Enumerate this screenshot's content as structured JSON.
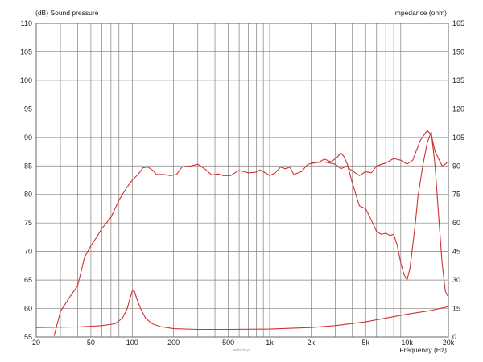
{
  "chart_data": {
    "type": "line",
    "left_axis_title": "(dB)  Sound pressure",
    "right_axis_title": "Impedance  (ohm)",
    "x_axis_title": "Frequency  (Hz)",
    "watermark": "audio.net.pl",
    "x_scale": "log",
    "xlim": [
      20,
      20000
    ],
    "ylim_left": [
      55,
      110
    ],
    "ylim_right": [
      0,
      165
    ],
    "grid": true,
    "x_ticks": [
      {
        "value": 20,
        "label": "20"
      },
      {
        "value": 50,
        "label": "50"
      },
      {
        "value": 100,
        "label": "100"
      },
      {
        "value": 200,
        "label": "200"
      },
      {
        "value": 500,
        "label": "500"
      },
      {
        "value": 1000,
        "label": "1k"
      },
      {
        "value": 2000,
        "label": "2k"
      },
      {
        "value": 5000,
        "label": "5k"
      },
      {
        "value": 10000,
        "label": "10k"
      },
      {
        "value": 20000,
        "label": "20k"
      }
    ],
    "y_left_ticks": [
      55,
      60,
      65,
      70,
      75,
      80,
      85,
      90,
      95,
      100,
      105,
      110
    ],
    "y_right_ticks": [
      0,
      15,
      30,
      45,
      60,
      75,
      90,
      105,
      120,
      135,
      150,
      165
    ],
    "colors": {
      "curve": "#cc3333",
      "grid": "#808080",
      "frame": "#666666"
    },
    "series": [
      {
        "axis": "left",
        "points": [
          [
            27,
            55.2
          ],
          [
            30,
            59.5
          ],
          [
            35,
            62
          ],
          [
            40,
            64
          ],
          [
            45,
            69
          ],
          [
            50,
            71
          ],
          [
            55,
            72.5
          ],
          [
            60,
            74
          ],
          [
            70,
            76
          ],
          [
            80,
            79
          ],
          [
            90,
            81
          ],
          [
            100,
            82.5
          ],
          [
            110,
            83.5
          ],
          [
            120,
            84.7
          ],
          [
            130,
            84.8
          ],
          [
            140,
            84.3
          ],
          [
            150,
            83.5
          ],
          [
            170,
            83.5
          ],
          [
            190,
            83.3
          ],
          [
            210,
            83.5
          ],
          [
            230,
            84.8
          ],
          [
            270,
            85
          ],
          [
            300,
            85.3
          ],
          [
            340,
            84.4
          ],
          [
            380,
            83.4
          ],
          [
            420,
            83.6
          ],
          [
            460,
            83.3
          ],
          [
            520,
            83.3
          ],
          [
            560,
            83.8
          ],
          [
            600,
            84.2
          ],
          [
            650,
            84.0
          ],
          [
            700,
            83.8
          ],
          [
            800,
            83.9
          ],
          [
            850,
            84.3
          ],
          [
            900,
            84.0
          ],
          [
            1000,
            83.3
          ],
          [
            1100,
            83.8
          ],
          [
            1200,
            84.8
          ],
          [
            1300,
            84.5
          ],
          [
            1400,
            84.8
          ],
          [
            1500,
            83.5
          ],
          [
            1700,
            84.0
          ],
          [
            1900,
            85.3
          ],
          [
            2100,
            85.5
          ],
          [
            2300,
            85.7
          ],
          [
            2500,
            86.2
          ],
          [
            2800,
            85.7
          ],
          [
            3100,
            86.5
          ],
          [
            3300,
            87.3
          ],
          [
            3500,
            86.5
          ],
          [
            3800,
            84.5
          ],
          [
            4200,
            83.8
          ],
          [
            4500,
            83.3
          ],
          [
            5000,
            84.0
          ],
          [
            5500,
            83.8
          ],
          [
            6000,
            85.0
          ],
          [
            7000,
            85.5
          ],
          [
            8000,
            86.3
          ],
          [
            9000,
            86.0
          ],
          [
            10000,
            85.3
          ],
          [
            11000,
            86.0
          ],
          [
            12500,
            89.5
          ],
          [
            14000,
            91.2
          ],
          [
            15000,
            90.5
          ],
          [
            16000,
            87.5
          ],
          [
            18000,
            85.0
          ],
          [
            19000,
            85.3
          ],
          [
            20000,
            85.8
          ]
        ]
      },
      {
        "axis": "left",
        "points": [
          [
            2000,
            85.5
          ],
          [
            2500,
            85.7
          ],
          [
            3000,
            85.3
          ],
          [
            3300,
            84.5
          ],
          [
            3700,
            85.0
          ],
          [
            4000,
            82.0
          ],
          [
            4500,
            78.0
          ],
          [
            5000,
            77.5
          ],
          [
            5500,
            75.5
          ],
          [
            6000,
            73.5
          ],
          [
            6500,
            73.0
          ],
          [
            7000,
            73.2
          ],
          [
            7500,
            72.8
          ],
          [
            8000,
            73.0
          ],
          [
            8500,
            71.0
          ],
          [
            9000,
            68.0
          ],
          [
            9500,
            66.0
          ],
          [
            10000,
            65.0
          ],
          [
            10500,
            67.0
          ],
          [
            11000,
            71.0
          ],
          [
            11500,
            75.0
          ],
          [
            12000,
            79.5
          ],
          [
            13000,
            85.0
          ],
          [
            14000,
            89.0
          ],
          [
            15000,
            91.0
          ],
          [
            16000,
            85.0
          ],
          [
            17000,
            76.0
          ],
          [
            18000,
            68.0
          ],
          [
            19000,
            63.0
          ],
          [
            20000,
            62.0
          ]
        ]
      },
      {
        "axis": "right",
        "points": [
          [
            20,
            5
          ],
          [
            40,
            5.3
          ],
          [
            60,
            6
          ],
          [
            75,
            7
          ],
          [
            85,
            10
          ],
          [
            92,
            15
          ],
          [
            96,
            20
          ],
          [
            100,
            24.2
          ],
          [
            104,
            24
          ],
          [
            108,
            20
          ],
          [
            115,
            15
          ],
          [
            125,
            10
          ],
          [
            140,
            7
          ],
          [
            160,
            5.5
          ],
          [
            200,
            4.4
          ],
          [
            300,
            4
          ],
          [
            500,
            4
          ],
          [
            1000,
            4.2
          ],
          [
            2000,
            5
          ],
          [
            3000,
            6
          ],
          [
            5000,
            8
          ],
          [
            7000,
            10
          ],
          [
            10000,
            12
          ],
          [
            15000,
            14
          ],
          [
            20000,
            16
          ]
        ]
      }
    ]
  }
}
